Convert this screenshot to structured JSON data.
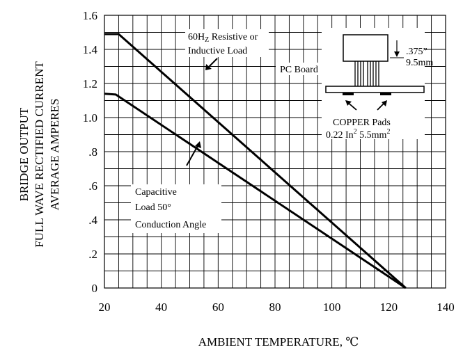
{
  "chart_data": {
    "type": "line",
    "title": "",
    "xlabel": "AMBIENT TEMPERATURE,  ℃",
    "ylabel_lines": [
      "BRIDGE OUTPUT",
      "FULL WAVE RECTIFIED CURRENT",
      "AVERAGE AMPERES"
    ],
    "xlim": [
      20,
      140
    ],
    "ylim": [
      0,
      1.6
    ],
    "x_ticks": [
      20,
      40,
      60,
      80,
      100,
      120,
      140
    ],
    "x_tick_labels": [
      "20",
      "40",
      "60",
      "80",
      "100",
      "120",
      "140"
    ],
    "y_ticks": [
      0,
      0.2,
      0.4,
      0.6,
      0.8,
      1.0,
      1.2,
      1.4,
      1.6
    ],
    "y_tick_labels": [
      "0",
      ".2",
      ".4",
      ".6",
      ".8",
      "1.0",
      "1.2",
      "1.4",
      "1.6"
    ],
    "grid": true,
    "series": [
      {
        "key": "resistive",
        "values": [
          [
            20,
            1.49
          ],
          [
            25,
            1.49
          ],
          [
            126,
            0.0
          ]
        ]
      },
      {
        "key": "capacitive",
        "values": [
          [
            20,
            1.14
          ],
          [
            24,
            1.135
          ],
          [
            126,
            0.0
          ]
        ]
      }
    ],
    "annotations": {
      "resistive_line1": "60H",
      "resistive_sub": "Z",
      "resistive_line1_rest": " Resistive or",
      "resistive_line2": "Inductive Load",
      "capacitive_line1": "Capacitive",
      "capacitive_line2": "Load 50°",
      "capacitive_line3": "Conduction Angle",
      "pc_board": "PC Board",
      "dim_in": ".375”",
      "dim_mm": "9.5mm",
      "pads_line1": "COPPER Pads",
      "pads_line2_a": "0.22 In",
      "pads_line2_sup": "2",
      "pads_line2_b": " 5.5mm",
      "pads_line2_sup2": "2"
    }
  }
}
